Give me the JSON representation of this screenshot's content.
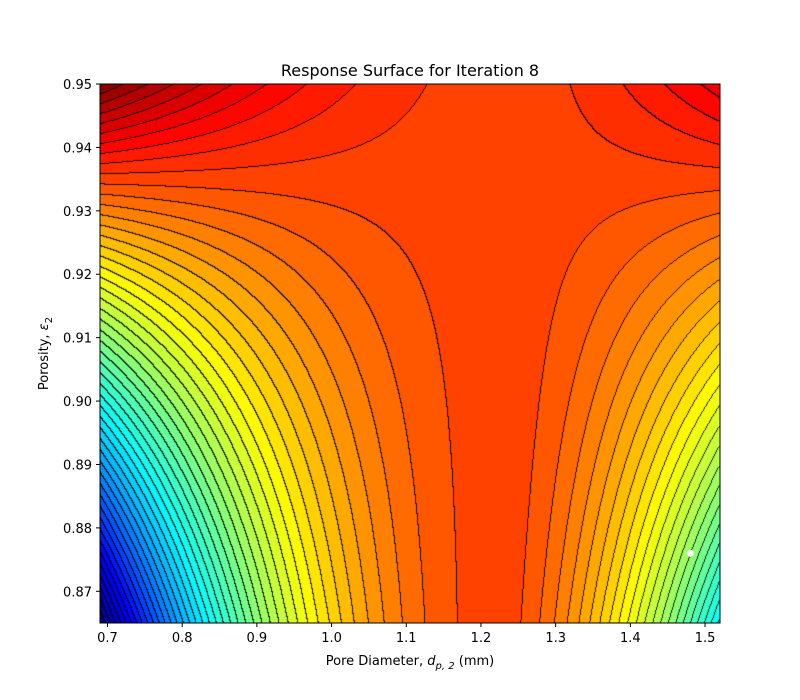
{
  "chart_data": {
    "type": "contour",
    "title": "Response Surface for Iteration 8",
    "xlabel_prefix": "Pore Diameter, ",
    "xlabel_var": "d",
    "xlabel_sub": "p, 2",
    "xlabel_suffix": " (mm)",
    "ylabel_prefix": "Porosity, ",
    "ylabel_var": "ε",
    "ylabel_sub": "2",
    "xlim": [
      0.69,
      1.52
    ],
    "ylim": [
      0.865,
      0.95
    ],
    "x_ticks": [
      0.7,
      0.8,
      0.9,
      1.0,
      1.1,
      1.2,
      1.3,
      1.4,
      1.5
    ],
    "x_tick_labels": [
      "0.7",
      "0.8",
      "0.9",
      "1.0",
      "1.1",
      "1.2",
      "1.3",
      "1.4",
      "1.5"
    ],
    "y_ticks": [
      0.87,
      0.88,
      0.89,
      0.9,
      0.91,
      0.92,
      0.93,
      0.94,
      0.95
    ],
    "y_tick_labels": [
      "0.87",
      "0.88",
      "0.89",
      "0.90",
      "0.91",
      "0.92",
      "0.93",
      "0.94",
      "0.95"
    ],
    "colormap": "jet",
    "levels": 50,
    "surface_model": "quadratic response surface with maximum near d = 1.23 mm at low porosity",
    "optimum_region": {
      "x": 1.23,
      "y": 0.865
    },
    "marker_point": {
      "x": 1.48,
      "y": 0.876,
      "color": "#ffffff"
    },
    "grid": false,
    "legend": "none"
  }
}
